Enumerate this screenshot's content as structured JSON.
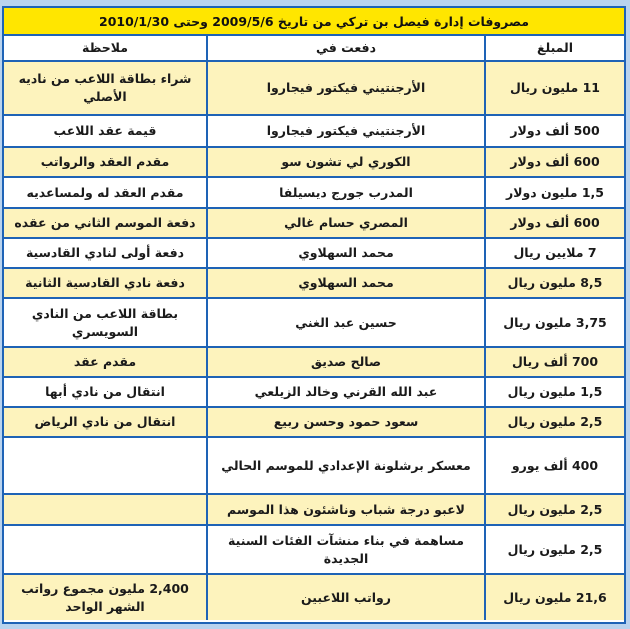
{
  "title": "مصروفات إدارة فيصل بن تركي من تاريخ 2009/5/6 وحتى 2010/1/30",
  "headers": {
    "amount": "المبلغ",
    "paid_for": "دفعت في",
    "note": "ملاحظة"
  },
  "colors": {
    "border": "#1e63b6",
    "title_bg": "#ffe600",
    "row_alt": "#fdf3bd"
  },
  "rows": [
    {
      "amount": "11 مليون ريال",
      "paid_for": "الأرجنتيني فيكتور فيجاروا",
      "note": "شراء بطاقة اللاعب من ناديه الأصلي"
    },
    {
      "amount": "500 ألف دولار",
      "paid_for": "الأرجنتيني فيكتور فيجاروا",
      "note": "قيمة عقد اللاعب"
    },
    {
      "amount": "600 ألف دولار",
      "paid_for": "الكوري لي تشون سو",
      "note": "مقدم العقد والرواتب"
    },
    {
      "amount": "1,5 مليون دولار",
      "paid_for": "المدرب جورج ديسيلفا",
      "note": "مقدم العقد له ولمساعديه"
    },
    {
      "amount": "600 ألف دولار",
      "paid_for": "المصري حسام غالي",
      "note": "دفعة الموسم الثاني من عقده"
    },
    {
      "amount": "7 ملايين ريال",
      "paid_for": "محمد السهلاوي",
      "note": "دفعة أولى لنادي القادسية"
    },
    {
      "amount": "8,5 مليون ريال",
      "paid_for": "محمد السهلاوي",
      "note": "دفعة نادي القادسية الثانية"
    },
    {
      "amount": "3,75 مليون ريال",
      "paid_for": "حسين عبد الغني",
      "note": "بطاقة اللاعب من النادي السويسري"
    },
    {
      "amount": "700 ألف ريال",
      "paid_for": "صالح صديق",
      "note": "مقدم عقد"
    },
    {
      "amount": "1,5 مليون ريال",
      "paid_for": "عبد الله القرني وخالد الزيلعي",
      "note": "انتقال من نادي أبها"
    },
    {
      "amount": "2,5 مليون ريال",
      "paid_for": "سعود حمود وحسن ربيع",
      "note": "انتقال من نادي الرياض"
    },
    {
      "amount": "400 ألف يورو",
      "paid_for": "معسكر برشلونة الإعدادي للموسم الحالي",
      "note": ""
    },
    {
      "amount": "2,5 مليون ريال",
      "paid_for": "لاعبو درجة شباب وناشئون هذا الموسم",
      "note": ""
    },
    {
      "amount": "2,5 مليون ريال",
      "paid_for": "مساهمة في بناء منشآت الفئات السنية الجديدة",
      "note": ""
    },
    {
      "amount": "21,6 مليون ريال",
      "paid_for": "رواتب اللاعبين",
      "note": "2,400 مليون مجموع رواتب الشهر الواحد"
    }
  ]
}
